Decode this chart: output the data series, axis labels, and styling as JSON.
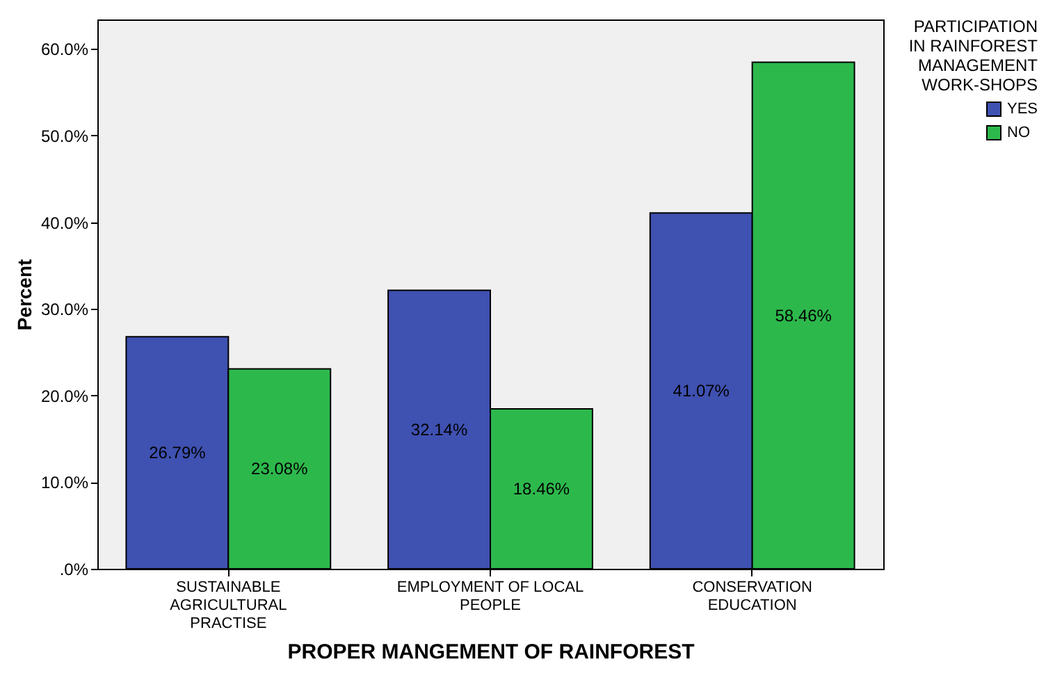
{
  "chart_data": {
    "type": "bar",
    "xlabel": "PROPER MANGEMENT OF RAINFOREST",
    "ylabel": "Percent",
    "legend_title": "PARTICIPATION IN RAINFOREST MANAGEMENT WORK-SHOPS",
    "legend": "top right",
    "categories": [
      "SUSTAINABLE AGRICULTURAL PRACTISE",
      "EMPLOYMENT OF LOCAL PEOPLE",
      "CONSERVATION EDUCATION"
    ],
    "series": [
      {
        "name": "YES",
        "color": "#3f51b1",
        "values": [
          26.79,
          32.14,
          41.07
        ],
        "value_labels": [
          "26.79%",
          "32.14%",
          "41.07%"
        ]
      },
      {
        "name": "NO",
        "color": "#2db84c",
        "values": [
          23.08,
          18.46,
          58.46
        ],
        "value_labels": [
          "23.08%",
          "18.46%",
          "58.46%"
        ]
      }
    ],
    "ylim": [
      0,
      63.4
    ],
    "yticks": [
      {
        "value": 0,
        "label": ".0%"
      },
      {
        "value": 10,
        "label": "10.0%"
      },
      {
        "value": 20,
        "label": "20.0%"
      },
      {
        "value": 30,
        "label": "30.0%"
      },
      {
        "value": 40,
        "label": "40.0%"
      },
      {
        "value": 50,
        "label": "50.0%"
      },
      {
        "value": 60,
        "label": "60.0%"
      }
    ],
    "grid": false
  }
}
